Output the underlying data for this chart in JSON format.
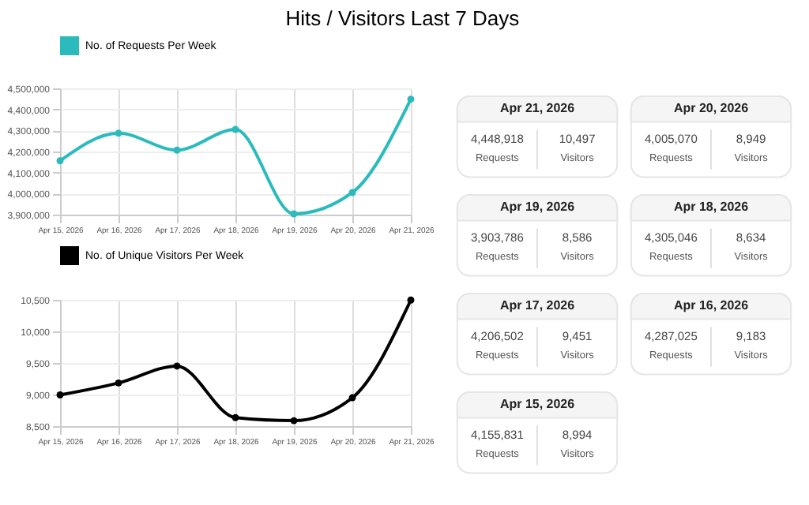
{
  "chart_data": [
    {
      "type": "line",
      "title": "Hits / Visitors Last 7 Days",
      "categories": [
        "Apr 15, 2026",
        "Apr 16, 2026",
        "Apr 17, 2026",
        "Apr 18, 2026",
        "Apr 19, 2026",
        "Apr 20, 2026",
        "Apr 21, 2026"
      ],
      "series": [
        {
          "name": "No. of Requests Per Week",
          "color": "#2bbbbd",
          "values": [
            4155831,
            4287025,
            4206502,
            4305046,
            3903786,
            4005070,
            4448918
          ]
        }
      ],
      "ylim": [
        3900000,
        4500000
      ],
      "yticks": [
        {
          "value": 3900000,
          "label": "3,900,000"
        },
        {
          "value": 4000000,
          "label": "4,000,000"
        },
        {
          "value": 4100000,
          "label": "4,100,000"
        },
        {
          "value": 4200000,
          "label": "4,200,000"
        },
        {
          "value": 4300000,
          "label": "4,300,000"
        },
        {
          "value": 4400000,
          "label": "4,400,000"
        },
        {
          "value": 4500000,
          "label": "4,500,000"
        }
      ],
      "grid": true,
      "legend": "top",
      "marker": "circle",
      "line_style": "solid"
    },
    {
      "type": "line",
      "categories": [
        "Apr 15, 2026",
        "Apr 16, 2026",
        "Apr 17, 2026",
        "Apr 18, 2026",
        "Apr 19, 2026",
        "Apr 20, 2026",
        "Apr 21, 2026"
      ],
      "series": [
        {
          "name": "No. of Unique Visitors Per Week",
          "color": "#000000",
          "values": [
            8994,
            9183,
            9451,
            8634,
            8586,
            8949,
            10497
          ]
        }
      ],
      "ylim": [
        8500,
        10500
      ],
      "yticks": [
        {
          "value": 8500,
          "label": "8,500"
        },
        {
          "value": 9000,
          "label": "9,000"
        },
        {
          "value": 9500,
          "label": "9,500"
        },
        {
          "value": 10000,
          "label": "10,000"
        },
        {
          "value": 10500,
          "label": "10,500"
        }
      ],
      "grid": true,
      "legend": "top",
      "marker": "circle",
      "line_style": "solid"
    },
    {
      "type": "other",
      "categories": [
        "Apr 21, 2026",
        "Apr 20, 2026",
        "Apr 19, 2026",
        "Apr 18, 2026",
        "Apr 17, 2026",
        "Apr 16, 2026",
        "Apr 15, 2026"
      ],
      "series": [
        {
          "name": "Requests",
          "values": [
            4448918,
            4005070,
            3903786,
            4305046,
            4206502,
            4287025,
            4155831
          ],
          "value_labels": [
            "4,448,918",
            "4,005,070",
            "3,903,786",
            "4,305,046",
            "4,206,502",
            "4,287,025",
            "4,155,831"
          ]
        },
        {
          "name": "Visitors",
          "values": [
            10497,
            8949,
            8586,
            8634,
            9451,
            9183,
            8994
          ],
          "value_labels": [
            "10,497",
            "8,949",
            "8,586",
            "8,634",
            "9,451",
            "9,183",
            "8,994"
          ]
        }
      ]
    }
  ]
}
